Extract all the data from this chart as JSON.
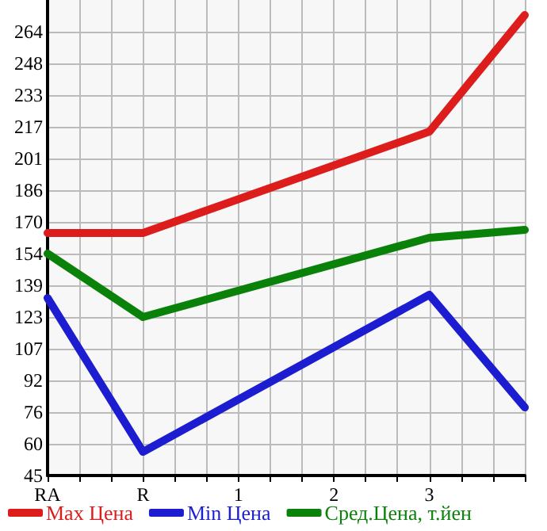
{
  "chart_data": {
    "type": "line",
    "categories": [
      "RA",
      "R",
      "1",
      "2",
      "3",
      null
    ],
    "series": [
      {
        "name": "Max Цена",
        "color": "#dd1c1c",
        "values": [
          164.7,
          164.7,
          null,
          null,
          214.7,
          272.2
        ]
      },
      {
        "name": "Min Цена",
        "color": "#1c1cd0",
        "values": [
          132.6,
          56.7,
          null,
          null,
          134.2,
          78.6
        ]
      },
      {
        "name": "Сред.Цена, т.йен",
        "color": "#0a820a",
        "values": [
          154.5,
          123.2,
          null,
          null,
          162.3,
          166.2
        ]
      }
    ],
    "ylim": [
      45,
      279.64
    ],
    "yticks": [
      {
        "value": 45,
        "label": "45"
      },
      {
        "value": 60.49,
        "label": "60"
      },
      {
        "value": 76.29,
        "label": "76"
      },
      {
        "value": 91.93,
        "label": "92"
      },
      {
        "value": 107.49,
        "label": "107"
      },
      {
        "value": 123.21,
        "label": "123"
      },
      {
        "value": 138.86,
        "label": "139"
      },
      {
        "value": 154.5,
        "label": "154"
      },
      {
        "value": 170.14,
        "label": "170"
      },
      {
        "value": 185.79,
        "label": "186"
      },
      {
        "value": 201.43,
        "label": "201"
      },
      {
        "value": 217.07,
        "label": "217"
      },
      {
        "value": 232.71,
        "label": "233"
      },
      {
        "value": 248.36,
        "label": "248"
      },
      {
        "value": 264,
        "label": "264"
      }
    ],
    "grid": true,
    "legend": "bottom",
    "marker": "none",
    "line_style": "solid"
  }
}
